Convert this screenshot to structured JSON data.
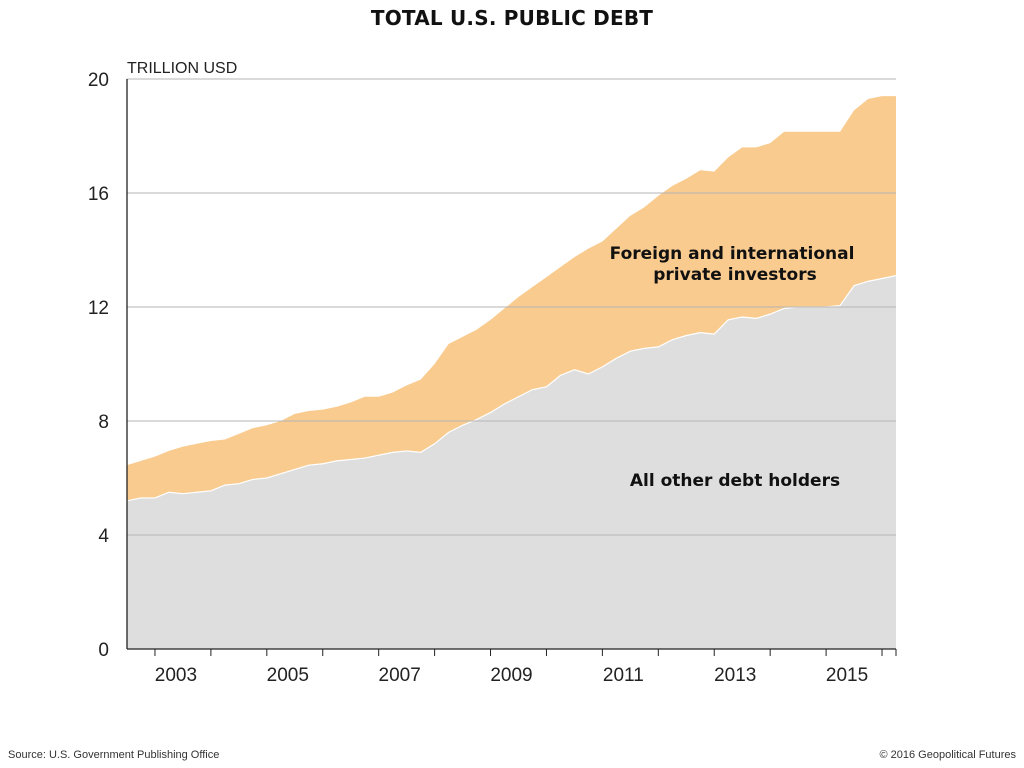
{
  "title": "TOTAL U.S. PUBLIC DEBT",
  "footer": {
    "source": "Source: U.S. Government Publishing Office",
    "copyright": "© 2016 Geopolitical Futures"
  },
  "chart_data": {
    "type": "area",
    "stacked": true,
    "title": "TOTAL U.S. PUBLIC DEBT",
    "ylabel": "TRILLION USD",
    "xlabel": "",
    "ylim": [
      0,
      20
    ],
    "yticks": [
      0,
      4,
      8,
      12,
      16,
      20
    ],
    "xticks": [
      "2003",
      "2005",
      "2007",
      "2009",
      "2011",
      "2013",
      "2015"
    ],
    "grid": true,
    "legend": "none",
    "colors": {
      "foreign": "#f9cb8f",
      "other": "#dedede",
      "grid": "#b5b5b5",
      "axis": "#222222"
    },
    "x": [
      "2002-Q3",
      "2002-Q4",
      "2003-Q1",
      "2003-Q2",
      "2003-Q3",
      "2003-Q4",
      "2004-Q1",
      "2004-Q2",
      "2004-Q3",
      "2004-Q4",
      "2005-Q1",
      "2005-Q2",
      "2005-Q3",
      "2005-Q4",
      "2006-Q1",
      "2006-Q2",
      "2006-Q3",
      "2006-Q4",
      "2007-Q1",
      "2007-Q2",
      "2007-Q3",
      "2007-Q4",
      "2008-Q1",
      "2008-Q2",
      "2008-Q3",
      "2008-Q4",
      "2009-Q1",
      "2009-Q2",
      "2009-Q3",
      "2009-Q4",
      "2010-Q1",
      "2010-Q2",
      "2010-Q3",
      "2010-Q4",
      "2011-Q1",
      "2011-Q2",
      "2011-Q3",
      "2011-Q4",
      "2012-Q1",
      "2012-Q2",
      "2012-Q3",
      "2012-Q4",
      "2013-Q1",
      "2013-Q2",
      "2013-Q3",
      "2013-Q4",
      "2014-Q1",
      "2014-Q2",
      "2014-Q3",
      "2014-Q4",
      "2015-Q1",
      "2015-Q2",
      "2015-Q3",
      "2015-Q4",
      "2016-Q1",
      "2016-Q2"
    ],
    "series": [
      {
        "name": "All other debt holders",
        "values": [
          5.2,
          5.3,
          5.3,
          5.5,
          5.45,
          5.5,
          5.55,
          5.75,
          5.8,
          5.95,
          6.0,
          6.15,
          6.3,
          6.45,
          6.5,
          6.6,
          6.65,
          6.7,
          6.8,
          6.9,
          6.95,
          6.9,
          7.2,
          7.6,
          7.85,
          8.05,
          8.3,
          8.6,
          8.85,
          9.1,
          9.2,
          9.6,
          9.8,
          9.65,
          9.9,
          10.2,
          10.45,
          10.55,
          10.6,
          10.85,
          11.0,
          11.1,
          11.05,
          11.55,
          11.65,
          11.6,
          11.75,
          11.95,
          12.0,
          12.0,
          12.0,
          12.05,
          12.75,
          12.9,
          13.0,
          13.1
        ]
      },
      {
        "name": "Foreign and international private investors",
        "values": [
          1.25,
          1.3,
          1.45,
          1.45,
          1.65,
          1.7,
          1.75,
          1.6,
          1.75,
          1.8,
          1.85,
          1.85,
          1.95,
          1.9,
          1.9,
          1.9,
          2.0,
          2.15,
          2.05,
          2.1,
          2.3,
          2.55,
          2.8,
          3.1,
          3.1,
          3.15,
          3.25,
          3.35,
          3.5,
          3.6,
          3.85,
          3.8,
          3.95,
          4.4,
          4.4,
          4.55,
          4.75,
          4.95,
          5.3,
          5.4,
          5.5,
          5.7,
          5.7,
          5.7,
          5.95,
          6.0,
          6.0,
          6.2,
          6.15,
          6.15,
          6.15,
          6.1,
          6.15,
          6.4,
          6.4,
          6.3
        ]
      }
    ],
    "annotations": [
      {
        "lines": [
          "Foreign and international",
          "private investors"
        ]
      },
      {
        "lines": [
          "All other debt holders"
        ]
      }
    ]
  }
}
